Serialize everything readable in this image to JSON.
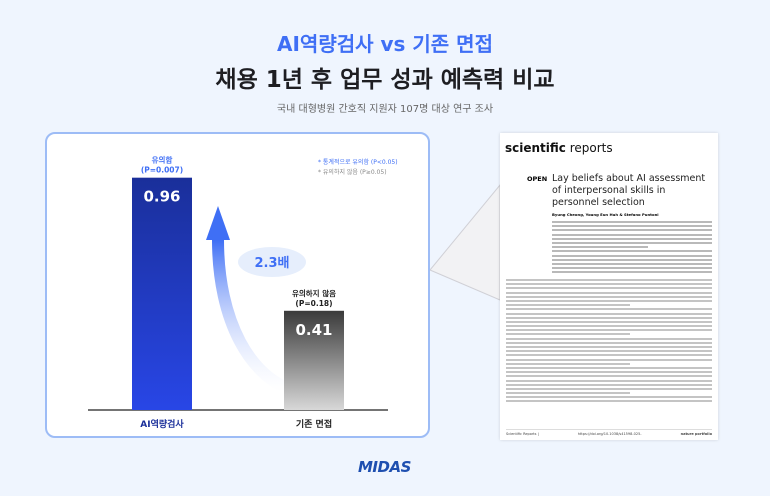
{
  "header": {
    "title": "AI역량검사 vs 기존 면접",
    "subtitle": "채용 1년 후 업무 성과 예측력 비교",
    "note": "국내 대형병원 간호직 지원자 107명 대상 연구 조사"
  },
  "chart_data": {
    "type": "bar",
    "categories": [
      "AI역량검사",
      "기존 면접"
    ],
    "values": [
      0.96,
      0.41
    ],
    "sig_labels": [
      [
        "유의함",
        "(P=0.007)"
      ],
      [
        "유의하지 않음",
        "(P=0.18)"
      ]
    ],
    "value_labels": [
      "0.96",
      "0.41"
    ],
    "ylim": [
      0,
      1.0
    ],
    "colors": [
      "#1a2f9a",
      "#3a3a3a"
    ],
    "ratio_label": "2.3배",
    "legend": [
      "* 통계적으로 유의함 (P<0.05)",
      "* 유의하지 않음 (P≥0.05)"
    ],
    "legend_colors": [
      "#3f6ff5",
      "#888888"
    ]
  },
  "paper": {
    "journal_bold": "scientific",
    "journal": " reports",
    "open": "OPEN",
    "title": "Lay beliefs about AI assessment of interpersonal skills in personnel selection",
    "authors": "Byung Cheong, Young Eun Huh & Stefano Puntoni",
    "footer_left": "Scientific Reports |",
    "footer_doi": "https://doi.org/10.1038/s41598-025-",
    "footer_right": "nature portfolio"
  },
  "brand": "MIDAS"
}
